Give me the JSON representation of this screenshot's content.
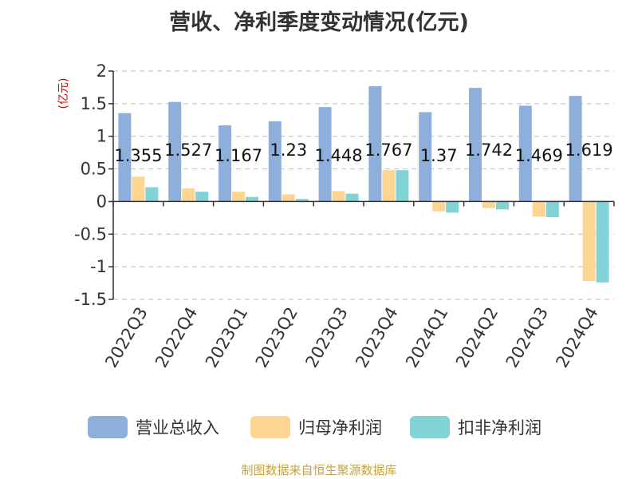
{
  "title": "营收、净利季度变动情况(亿元)",
  "source": "制图数据来自恒生聚源数据库",
  "chart_data": {
    "type": "bar",
    "title": "营收、净利季度变动情况(亿元)",
    "ylabel": "(亿元)",
    "xlabel": "",
    "ylim": [
      -1.5,
      2
    ],
    "yticks": [
      "2",
      "1.5",
      "1",
      "0.5",
      "0",
      "-0.5",
      "-1",
      "-1.5"
    ],
    "ytick_values": [
      2,
      1.5,
      1,
      0.5,
      0,
      -0.5,
      -1,
      -1.5
    ],
    "grid": true,
    "legend_position": "bottom",
    "categories": [
      "2022Q3",
      "2022Q4",
      "2023Q1",
      "2023Q2",
      "2023Q3",
      "2023Q4",
      "2024Q1",
      "2024Q2",
      "2024Q3",
      "2024Q4"
    ],
    "series": [
      {
        "name": "营业总收入",
        "color": "#8eafdc",
        "values": [
          1.355,
          1.527,
          1.167,
          1.23,
          1.448,
          1.767,
          1.37,
          1.742,
          1.469,
          1.619
        ],
        "labels": [
          "1.355",
          "1.527",
          "1.167",
          "1.23",
          "1.448",
          "1.767",
          "1.37",
          "1.742",
          "1.469",
          "1.619"
        ]
      },
      {
        "name": "归母净利润",
        "color": "#fdd592",
        "values": [
          0.38,
          0.2,
          0.15,
          0.11,
          0.16,
          0.48,
          -0.15,
          -0.1,
          -0.23,
          -1.22
        ]
      },
      {
        "name": "扣非净利润",
        "color": "#82d3d6",
        "values": [
          0.22,
          0.15,
          0.07,
          0.04,
          0.12,
          0.48,
          -0.17,
          -0.12,
          -0.24,
          -1.24
        ]
      }
    ]
  }
}
